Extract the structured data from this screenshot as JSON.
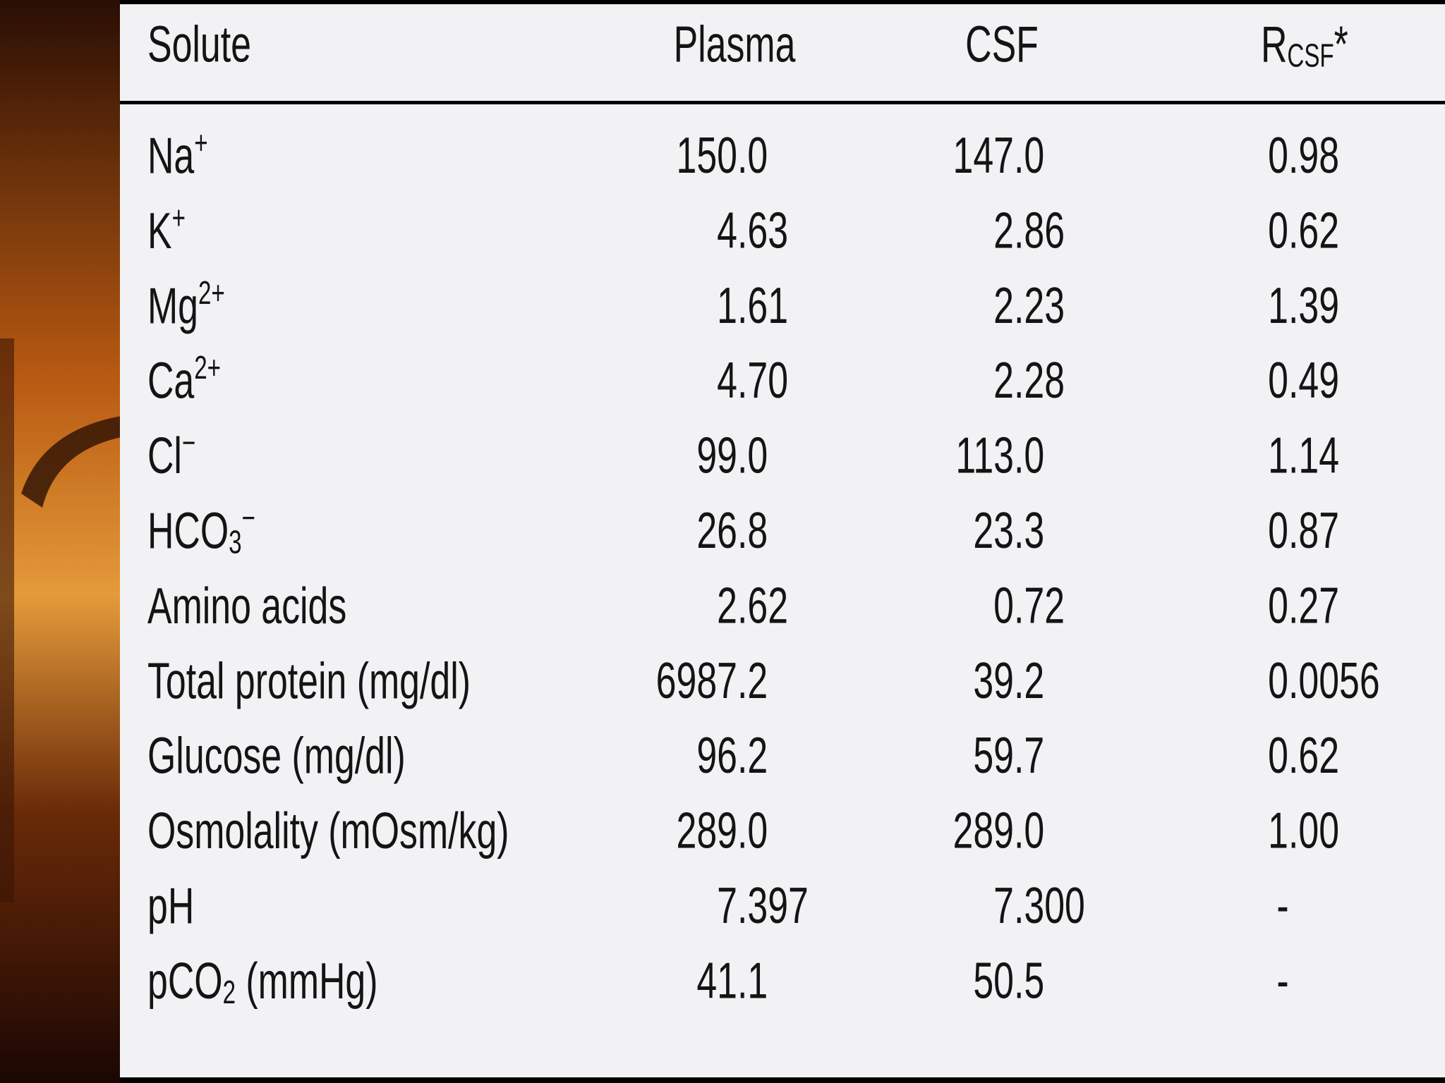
{
  "table": {
    "header": [
      {
        "base": "Solute"
      },
      {
        "base": "Plasma"
      },
      {
        "base": "CSF"
      },
      {
        "base": "R",
        "sub": "CSF",
        "rest": "*"
      }
    ],
    "rows": [
      [
        {
          "base": "Na",
          "sup": "+"
        },
        "150.0",
        "147.0",
        "0.98"
      ],
      [
        {
          "base": "K",
          "sup": "+"
        },
        "4.63",
        "2.86",
        "0.62"
      ],
      [
        {
          "base": "Mg",
          "sup": "2+"
        },
        "1.61",
        "2.23",
        "1.39"
      ],
      [
        {
          "base": "Ca",
          "sup": "2+"
        },
        "4.70",
        "2.28",
        "0.49"
      ],
      [
        {
          "base": "Cl",
          "sup": "−"
        },
        "99.0",
        "113.0",
        "1.14"
      ],
      [
        {
          "base": "HCO",
          "sub": "3",
          "sup": "−"
        },
        "26.8",
        "23.3",
        "0.87"
      ],
      [
        {
          "base": "Amino acids"
        },
        "2.62",
        "0.72",
        "0.27"
      ],
      [
        {
          "base": "Total protein (mg/dl)"
        },
        "6987.2",
        "39.2",
        "0.0056"
      ],
      [
        {
          "base": "Glucose (mg/dl)"
        },
        "96.2",
        "59.7",
        "0.62"
      ],
      [
        {
          "base": "Osmolality (mOsm/kg)"
        },
        "289.0",
        "289.0",
        "1.00"
      ],
      [
        {
          "base": "pH"
        },
        "7.397",
        "7.300",
        "-"
      ],
      [
        {
          "base": "pCO",
          "sub": "2",
          "rest": " (mmHg)"
        },
        "41.1",
        "50.5",
        "-"
      ]
    ]
  }
}
